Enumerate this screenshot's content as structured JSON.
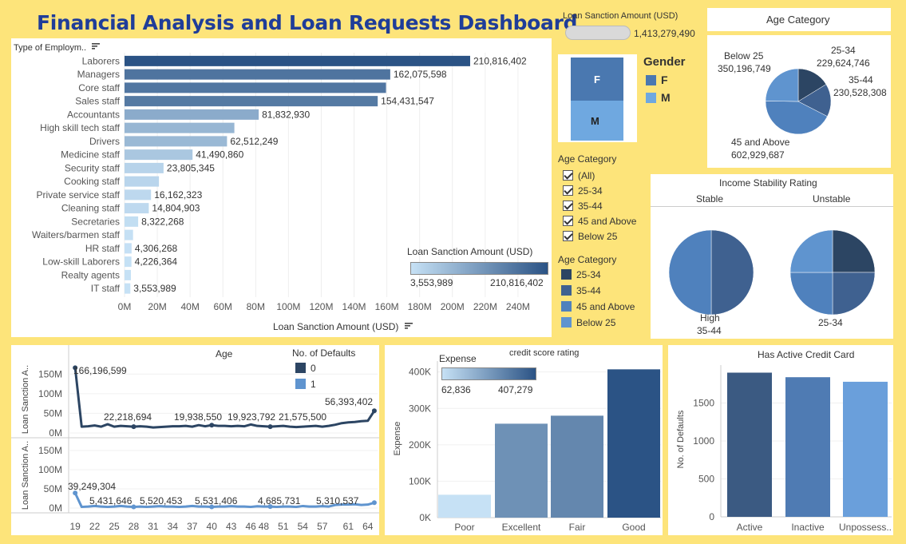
{
  "dashboard": {
    "title": "Financial Analysis and Loan Requests Dashboard"
  },
  "kpi": {
    "label": "Loan Sanction Amount (USD)",
    "value": "1,413,279,490"
  },
  "gender": {
    "title": "Gender",
    "legend": [
      {
        "label": "F",
        "color": "#4a78b0"
      },
      {
        "label": "M",
        "color": "#6fa8e0"
      }
    ],
    "bar_labels": [
      "F",
      "M"
    ]
  },
  "age_filter": {
    "title": "Age Category",
    "options": [
      "(All)",
      "25-34",
      "35-44",
      "45 and Above",
      "Below 25"
    ]
  },
  "age_legend": {
    "title": "Age Category",
    "items": [
      {
        "label": "25-34",
        "color": "#2c4563"
      },
      {
        "label": "35-44",
        "color": "#3f6190"
      },
      {
        "label": "45 and Above",
        "color": "#4f81bd"
      },
      {
        "label": "Below 25",
        "color": "#5f94cf"
      }
    ]
  },
  "employment_chart": {
    "header": "Type of Employm..",
    "xlabel": "Loan Sanction Amount (USD)",
    "x_ticks": [
      "0M",
      "20M",
      "40M",
      "60M",
      "80M",
      "100M",
      "120M",
      "140M",
      "160M",
      "180M",
      "200M",
      "220M",
      "240M"
    ],
    "color_legend_title": "Loan Sanction Amount (USD)",
    "color_legend_min": "3,553,989",
    "color_legend_max": "210,816,402"
  },
  "age_pie": {
    "title": "Age Category",
    "labels": [
      {
        "name": "25-34",
        "value": "229,624,746"
      },
      {
        "name": "35-44",
        "value": "230,528,308"
      },
      {
        "name": "45 and Above",
        "value": "602,929,687"
      },
      {
        "name": "Below 25",
        "value": "350,196,749"
      }
    ]
  },
  "income_stability": {
    "title": "Income Stability Rating",
    "columns": [
      "Stable",
      "Unstable"
    ],
    "stable_label_top": "High",
    "stable_label_bottom": "35-44",
    "unstable_label": "25-34"
  },
  "age_line": {
    "header_age": "Age",
    "header_defaults": "No. of Defaults",
    "legend": [
      {
        "label": "0",
        "color": "#2c4563"
      },
      {
        "label": "1",
        "color": "#5f94cf"
      }
    ],
    "ylabel": "Loan Sanction A..",
    "y_ticks": [
      "150M",
      "100M",
      "50M",
      "0M"
    ],
    "x_ticks": [
      "19",
      "22",
      "25",
      "28",
      "31",
      "34",
      "37",
      "40",
      "43",
      "46",
      "48",
      "51",
      "54",
      "57",
      "61",
      "64"
    ],
    "top_labels": [
      "166,196,599",
      "22,218,694",
      "19,938,550",
      "19,923,792",
      "21,575,500",
      "56,393,402"
    ],
    "bottom_labels": [
      "39,249,304",
      "5,431,646",
      "5,520,453",
      "5,531,406",
      "4,685,731",
      "5,310,537"
    ]
  },
  "credit_chart": {
    "title": "credit score rating",
    "legend_title": "Expense",
    "legend_min": "62,836",
    "legend_max": "407,279",
    "ylabel": "Expense",
    "y_ticks": [
      "400K",
      "300K",
      "200K",
      "100K",
      "0K"
    ]
  },
  "card_chart": {
    "title": "Has Active Credit Card",
    "ylabel": "No. of Defaults",
    "y_ticks": [
      "1500",
      "1000",
      "500",
      "0"
    ]
  },
  "chart_data": [
    {
      "type": "bar",
      "orientation": "horizontal",
      "categories": [
        "Laborers",
        "Managers",
        "Core staff",
        "Sales staff",
        "Accountants",
        "High skill tech staff",
        "Drivers",
        "Medicine staff",
        "Security staff",
        "Cooking staff",
        "Private service staff",
        "Cleaning staff",
        "Secretaries",
        "Waiters/barmen staff",
        "HR staff",
        "Low-skill Laborers",
        "Realty agents",
        "IT staff"
      ],
      "values": [
        210816402,
        162075598,
        159500000,
        154431547,
        81832930,
        67000000,
        62512249,
        41490860,
        23805345,
        21000000,
        16162323,
        14804903,
        8322268,
        5200000,
        4306268,
        4226364,
        3900000,
        3553989
      ],
      "data_labels": [
        "210,816,402",
        "162,075,598",
        "",
        "154,431,547",
        "81,832,930",
        "",
        "62,512,249",
        "41,490,860",
        "23,805,345",
        "",
        "16,162,323",
        "14,804,903",
        "8,322,268",
        "",
        "4,306,268",
        "4,226,364",
        "",
        "3,553,989"
      ],
      "xlabel": "Loan Sanction Amount (USD)",
      "xlim": [
        0,
        260000000
      ]
    },
    {
      "type": "bar",
      "categories": [
        "F",
        "M"
      ],
      "values": [
        0.6,
        0.4
      ]
    },
    {
      "type": "pie",
      "labels": [
        "25-34",
        "35-44",
        "45 and Above",
        "Below 25"
      ],
      "values": [
        229624746,
        230528308,
        602929687,
        350196749
      ]
    },
    {
      "type": "pie",
      "title": "Stable",
      "labels": [
        "35-44",
        "45 and Above"
      ],
      "values": [
        0.5,
        0.5
      ]
    },
    {
      "type": "pie",
      "title": "Unstable",
      "labels": [
        "25-34",
        "35-44",
        "45 and Above",
        "Below 25"
      ],
      "values": [
        0.25,
        0.25,
        0.25,
        0.25
      ]
    },
    {
      "type": "line",
      "x": [
        19,
        20,
        21,
        22,
        23,
        24,
        25,
        26,
        27,
        28,
        29,
        30,
        31,
        32,
        33,
        34,
        35,
        36,
        37,
        38,
        39,
        40,
        41,
        42,
        43,
        44,
        45,
        46,
        47,
        48,
        49,
        50,
        51,
        52,
        53,
        54,
        55,
        56,
        57,
        58,
        59,
        60,
        61,
        62,
        63,
        64,
        65
      ],
      "series": [
        {
          "name": "0",
          "values": [
            166196599,
            16000000,
            17000000,
            19000000,
            16000000,
            22218694,
            16000000,
            18000000,
            17000000,
            16000000,
            17000000,
            16000000,
            14000000,
            15000000,
            16000000,
            17000000,
            17000000,
            18000000,
            16000000,
            19938550,
            17000000,
            19923792,
            18000000,
            18000000,
            17000000,
            18000000,
            17000000,
            21575500,
            18000000,
            17000000,
            16000000,
            17000000,
            18000000,
            16000000,
            15000000,
            16000000,
            17000000,
            18000000,
            16000000,
            18000000,
            21000000,
            25000000,
            27000000,
            28000000,
            30000000,
            31000000,
            56393402
          ]
        },
        {
          "name": "1",
          "values": [
            39249304,
            3000000,
            4000000,
            5431646,
            4000000,
            3000000,
            4000000,
            5520453,
            4000000,
            3000000,
            4000000,
            3000000,
            4000000,
            5000000,
            4000000,
            4000000,
            3000000,
            4000000,
            5531406,
            4000000,
            4000000,
            3000000,
            4000000,
            4000000,
            5000000,
            4000000,
            4000000,
            3000000,
            4685731,
            4000000,
            4000000,
            3000000,
            4000000,
            4000000,
            3000000,
            5310537,
            4000000,
            4000000,
            5000000,
            4000000,
            8000000,
            9000000,
            9000000,
            10000000,
            8000000,
            9000000,
            14000000
          ]
        }
      ],
      "xlabel": "Age",
      "ylabel": "Loan Sanction A..",
      "ylim": [
        0,
        175000000
      ]
    },
    {
      "type": "bar",
      "title": "credit score rating",
      "categories": [
        "Poor",
        "Excellent",
        "Fair",
        "Good"
      ],
      "values": [
        62836,
        258000,
        280000,
        407279
      ],
      "ylabel": "Expense",
      "ylim": [
        0,
        430000
      ]
    },
    {
      "type": "bar",
      "title": "Has Active Credit Card",
      "categories": [
        "Active",
        "Inactive",
        "Unpossess.."
      ],
      "values": [
        1900,
        1840,
        1780
      ],
      "ylabel": "No. of Defaults",
      "ylim": [
        0,
        2000
      ]
    }
  ]
}
